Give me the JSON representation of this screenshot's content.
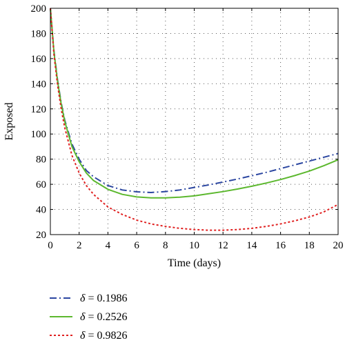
{
  "chart_data": {
    "type": "line",
    "xlabel": "Time (days)",
    "ylabel": "Exposed",
    "xlim": [
      0,
      20
    ],
    "ylim": [
      20,
      200
    ],
    "xticks": [
      0,
      2,
      4,
      6,
      8,
      10,
      12,
      14,
      16,
      18,
      20
    ],
    "yticks": [
      20,
      40,
      60,
      80,
      100,
      120,
      140,
      160,
      180,
      200
    ],
    "grid": true,
    "legend_position": "bottom-left, below plot",
    "series": [
      {
        "name": "δ = 0.1986",
        "legend_symbol": "δ",
        "legend_value": "= 0.1986",
        "color": "#2a45a0",
        "line_style": "dash-dot",
        "x": [
          0,
          0.25,
          0.5,
          0.75,
          1,
          1.5,
          2,
          2.5,
          3,
          4,
          5,
          6,
          7,
          8,
          9,
          10,
          11,
          12,
          13,
          14,
          15,
          16,
          17,
          18,
          19,
          20
        ],
        "y": [
          200,
          166,
          143,
          125,
          111,
          92,
          80,
          71,
          66,
          59,
          55.5,
          54,
          53.5,
          54.2,
          55.5,
          57.5,
          59.5,
          61.8,
          64.2,
          66.8,
          69.5,
          72.5,
          75.5,
          78.5,
          81.5,
          84.5
        ]
      },
      {
        "name": "δ = 0.2526",
        "legend_symbol": "δ",
        "legend_value": "= 0.2526",
        "color": "#5cb82e",
        "line_style": "solid",
        "x": [
          0,
          0.25,
          0.5,
          0.75,
          1,
          1.5,
          2,
          2.5,
          3,
          4,
          5,
          6,
          7,
          8,
          9,
          10,
          11,
          12,
          13,
          14,
          15,
          16,
          17,
          18,
          19,
          20
        ],
        "y": [
          200,
          165,
          142,
          124,
          110,
          90,
          78,
          69,
          63,
          56,
          52,
          50,
          49.2,
          49.2,
          49.8,
          50.8,
          52.5,
          54.2,
          56.2,
          58.5,
          61,
          63.8,
          67,
          70.5,
          74.8,
          79.5
        ]
      },
      {
        "name": "δ = 0.9826",
        "legend_symbol": "δ",
        "legend_value": "= 0.9826",
        "color": "#e02020",
        "line_style": "dotted",
        "x": [
          0,
          0.25,
          0.5,
          0.75,
          1,
          1.5,
          2,
          2.5,
          3,
          4,
          5,
          6,
          7,
          8,
          9,
          10,
          11,
          12,
          13,
          14,
          15,
          16,
          17,
          18,
          19,
          20
        ],
        "y": [
          200,
          163,
          139,
          120,
          105,
          83,
          69,
          59,
          52,
          42,
          36,
          31.5,
          28.5,
          26.5,
          25,
          24,
          23.5,
          23.5,
          24,
          25,
          26.5,
          28.5,
          31,
          34,
          38,
          44
        ]
      }
    ]
  }
}
